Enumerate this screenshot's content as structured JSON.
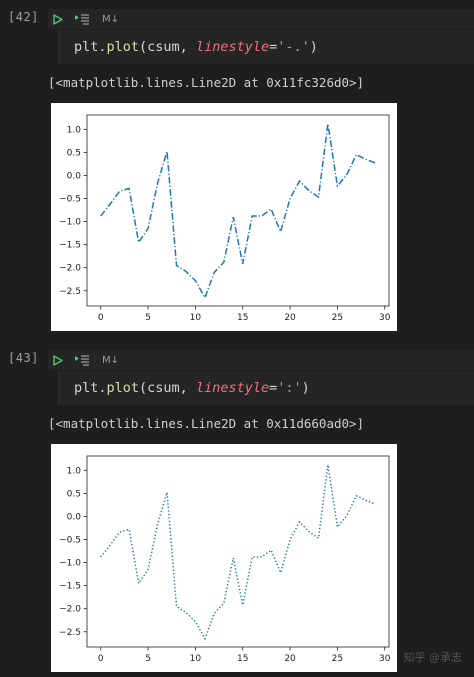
{
  "cells": [
    {
      "prompt": "[42]",
      "cell_type": "M↓",
      "code": {
        "fn_obj": "plt.",
        "fn": "plot",
        "open": "(csum, ",
        "kw": "linestyle",
        "eq": "=",
        "str": "'-.'",
        "close": ")"
      },
      "output_text": "[<matplotlib.lines.Line2D at 0x11fc326d0>]"
    },
    {
      "prompt": "[43]",
      "cell_type": "M↓",
      "code": {
        "fn_obj": "plt.",
        "fn": "plot",
        "open": "(csum, ",
        "kw": "linestyle",
        "eq": "=",
        "str": "':'",
        "close": ")"
      },
      "output_text": "[<matplotlib.lines.Line2D at 0x11d660ad0>]"
    }
  ],
  "chart_data": [
    {
      "type": "line",
      "x": [
        0,
        1,
        2,
        3,
        4,
        5,
        6,
        7,
        8,
        9,
        10,
        11,
        12,
        13,
        14,
        15,
        16,
        17,
        18,
        19,
        20,
        21,
        22,
        23,
        24,
        25,
        26,
        27,
        28,
        29
      ],
      "series": [
        {
          "values": [
            -0.88,
            -0.62,
            -0.34,
            -0.28,
            -1.45,
            -1.15,
            -0.17,
            0.52,
            -1.95,
            -2.08,
            -2.28,
            -2.65,
            -2.1,
            -1.88,
            -0.9,
            -1.92,
            -0.88,
            -0.88,
            -0.73,
            -1.22,
            -0.5,
            -0.12,
            -0.33,
            -0.47,
            1.12,
            -0.23,
            0.02,
            0.45,
            0.35,
            0.27
          ],
          "color": "#1f77b4",
          "linestyle": "-."
        }
      ],
      "xticks": [
        0,
        5,
        10,
        15,
        20,
        25,
        30
      ],
      "yticks": [
        1.0,
        0.5,
        0.0,
        -0.5,
        -1.0,
        -1.5,
        -2.0,
        -2.5
      ],
      "ytick_labels": [
        "1.0",
        "0.5",
        "0.0",
        "−0.5",
        "−1.0",
        "−1.5",
        "−2.0",
        "−2.5"
      ],
      "xlim": [
        -1.45,
        30.45
      ],
      "ylim": [
        -2.83,
        1.31
      ],
      "grid": false
    },
    {
      "type": "line",
      "x": [
        0,
        1,
        2,
        3,
        4,
        5,
        6,
        7,
        8,
        9,
        10,
        11,
        12,
        13,
        14,
        15,
        16,
        17,
        18,
        19,
        20,
        21,
        22,
        23,
        24,
        25,
        26,
        27,
        28,
        29
      ],
      "series": [
        {
          "values": [
            -0.88,
            -0.62,
            -0.34,
            -0.28,
            -1.45,
            -1.15,
            -0.17,
            0.52,
            -1.95,
            -2.08,
            -2.28,
            -2.65,
            -2.1,
            -1.88,
            -0.9,
            -1.92,
            -0.88,
            -0.88,
            -0.73,
            -1.22,
            -0.5,
            -0.12,
            -0.33,
            -0.47,
            1.12,
            -0.23,
            0.02,
            0.45,
            0.35,
            0.27
          ],
          "color": "#1f77b4",
          "linestyle": ":"
        }
      ],
      "xticks": [
        0,
        5,
        10,
        15,
        20,
        25,
        30
      ],
      "yticks": [
        1.0,
        0.5,
        0.0,
        -0.5,
        -1.0,
        -1.5,
        -2.0,
        -2.5
      ],
      "ytick_labels": [
        "1.0",
        "0.5",
        "0.0",
        "−0.5",
        "−1.0",
        "−1.5",
        "−2.0",
        "−2.5"
      ],
      "xlim": [
        -1.45,
        30.45
      ],
      "ylim": [
        -2.83,
        1.31
      ],
      "grid": false
    }
  ],
  "watermark": "知乎 @承志"
}
